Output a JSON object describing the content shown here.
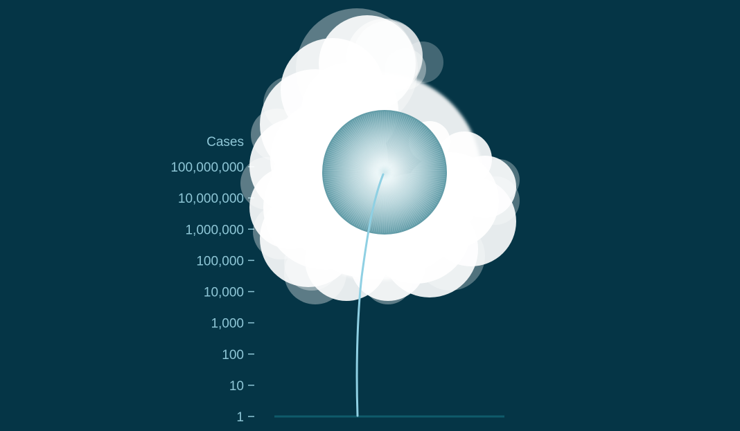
{
  "chart_data": {
    "type": "line",
    "ylabel": "Cases",
    "yscale": "log",
    "ylim": [
      1,
      100000000
    ],
    "yticks": [
      {
        "value": 1,
        "label": "1"
      },
      {
        "value": 10,
        "label": "10"
      },
      {
        "value": 100,
        "label": "100"
      },
      {
        "value": 1000,
        "label": "1,000"
      },
      {
        "value": 10000,
        "label": "10,000"
      },
      {
        "value": 100000,
        "label": "100,000"
      },
      {
        "value": 1000000,
        "label": "1,000,000"
      },
      {
        "value": 10000000,
        "label": "10,000,000"
      },
      {
        "value": 100000000,
        "label": "100,000,000"
      }
    ],
    "grid": false,
    "legend": "none"
  },
  "colors": {
    "background": "#053546",
    "stem": "#8fd0e3",
    "axis_text": "#8ec6d6",
    "baseline": "#0f5a6a",
    "bloom": "#ffffff",
    "seed_head": "#5f9aa6"
  }
}
